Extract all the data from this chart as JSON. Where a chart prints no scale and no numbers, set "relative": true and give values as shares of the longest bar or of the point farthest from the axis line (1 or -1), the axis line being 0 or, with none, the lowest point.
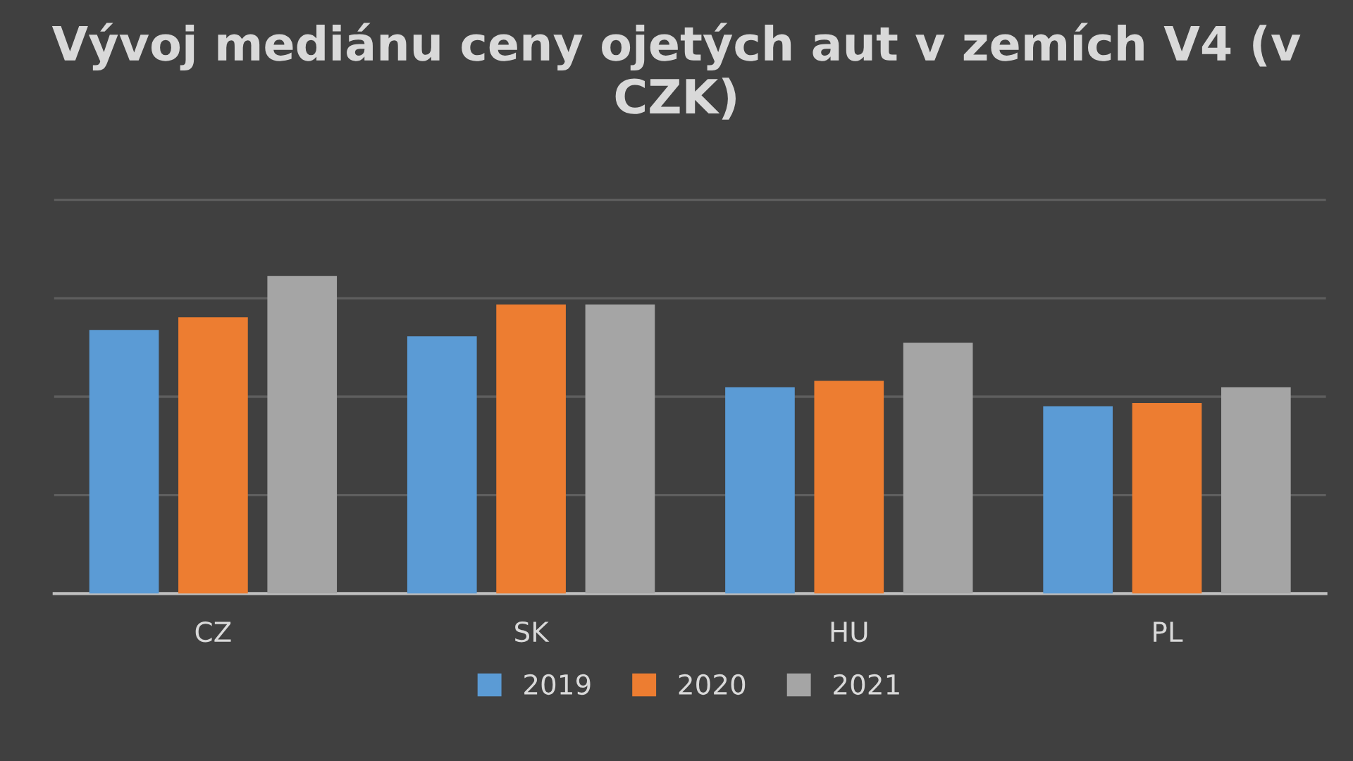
{
  "chart_data": {
    "type": "bar",
    "title": "Vývoj mediánu ceny ojetých aut v zemích V4 (v CZK)",
    "relative": true,
    "categories": [
      "CZ",
      "SK",
      "HU",
      "PL"
    ],
    "series": [
      {
        "name": "2019",
        "color": "#5b9bd5",
        "values": [
          0.83,
          0.81,
          0.65,
          0.59
        ]
      },
      {
        "name": "2020",
        "color": "#ed7d31",
        "values": [
          0.87,
          0.91,
          0.67,
          0.6
        ]
      },
      {
        "name": "2021",
        "color": "#a5a5a5",
        "values": [
          1,
          0.91,
          0.79,
          0.65
        ]
      }
    ],
    "ref_lines": [
      {
        "axis": "y",
        "value": 0.31,
        "color": "#5e5e5e"
      },
      {
        "axis": "y",
        "value": 0.62,
        "color": "#5e5e5e"
      },
      {
        "axis": "y",
        "value": 0.93,
        "color": "#5e5e5e"
      },
      {
        "axis": "y",
        "value": 1.24,
        "color": "#5e5e5e"
      }
    ],
    "legend": "bottom"
  }
}
